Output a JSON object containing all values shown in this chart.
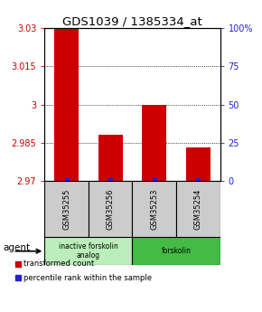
{
  "title": "GDS1039 / 1385334_at",
  "samples": [
    "GSM35255",
    "GSM35256",
    "GSM35253",
    "GSM35254"
  ],
  "bar_values": [
    3.03,
    2.988,
    3.0,
    2.983
  ],
  "percentile_values": [
    0.5,
    0.5,
    0.5,
    0.5
  ],
  "ylim_left": [
    2.97,
    3.03
  ],
  "ylim_right": [
    0,
    100
  ],
  "yticks_left": [
    2.97,
    2.985,
    3.0,
    3.015,
    3.03
  ],
  "ytick_labels_left": [
    "2.97",
    "2.985",
    "3",
    "3.015",
    "3.03"
  ],
  "yticks_right": [
    0,
    25,
    50,
    75,
    100
  ],
  "ytick_labels_right": [
    "0",
    "25",
    "50",
    "75",
    "100%"
  ],
  "bar_color": "#cc0000",
  "percentile_color": "#2222cc",
  "agent_groups": [
    {
      "label": "inactive forskolin\nanalog",
      "span": [
        0,
        2
      ],
      "color": "#bbeebb"
    },
    {
      "label": "forskolin",
      "span": [
        2,
        4
      ],
      "color": "#44bb44"
    }
  ],
  "legend_items": [
    {
      "label": "transformed count",
      "color": "#cc0000"
    },
    {
      "label": "percentile rank within the sample",
      "color": "#2222cc"
    }
  ],
  "agent_label": "agent",
  "title_fontsize": 9.5,
  "tick_fontsize": 7,
  "bar_width": 0.55,
  "sample_box_color": "#cccccc"
}
